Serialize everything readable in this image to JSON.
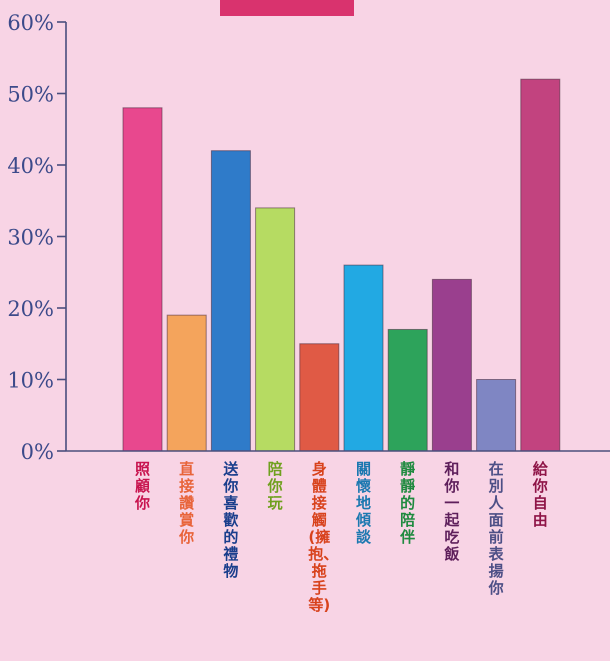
{
  "chart_data": {
    "type": "bar",
    "title": "",
    "xlabel": "",
    "ylabel": "",
    "ylim": [
      0,
      60
    ],
    "yticks": [
      "0%",
      "10%",
      "20%",
      "30%",
      "40%",
      "50%",
      "60%"
    ],
    "grid": false,
    "categories": [
      "照顧你",
      "直接讚賞你",
      "送你喜歡的禮物",
      "陪你玩",
      "身體接觸(擁抱、拖手等)",
      "關懷地傾談",
      "靜靜的陪伴",
      "和你一起吃飯",
      "在別人面前表揚你",
      "給你自由"
    ],
    "values": [
      48,
      19,
      42,
      34,
      15,
      26,
      17,
      24,
      10,
      52
    ],
    "bar_colors": [
      "#e8488e",
      "#f4a45c",
      "#2f7bc9",
      "#b6db62",
      "#e05a45",
      "#22a9e3",
      "#2da35b",
      "#9a3f8e",
      "#7f86c3",
      "#c2437f"
    ],
    "label_colors": [
      "#c8144f",
      "#e8643a",
      "#1a3e8c",
      "#6fa01e",
      "#d8421c",
      "#1b78b0",
      "#1f8a3f",
      "#5e1f5b",
      "#4d4f86",
      "#8e1447"
    ],
    "header_box_color": "#d9336e"
  }
}
